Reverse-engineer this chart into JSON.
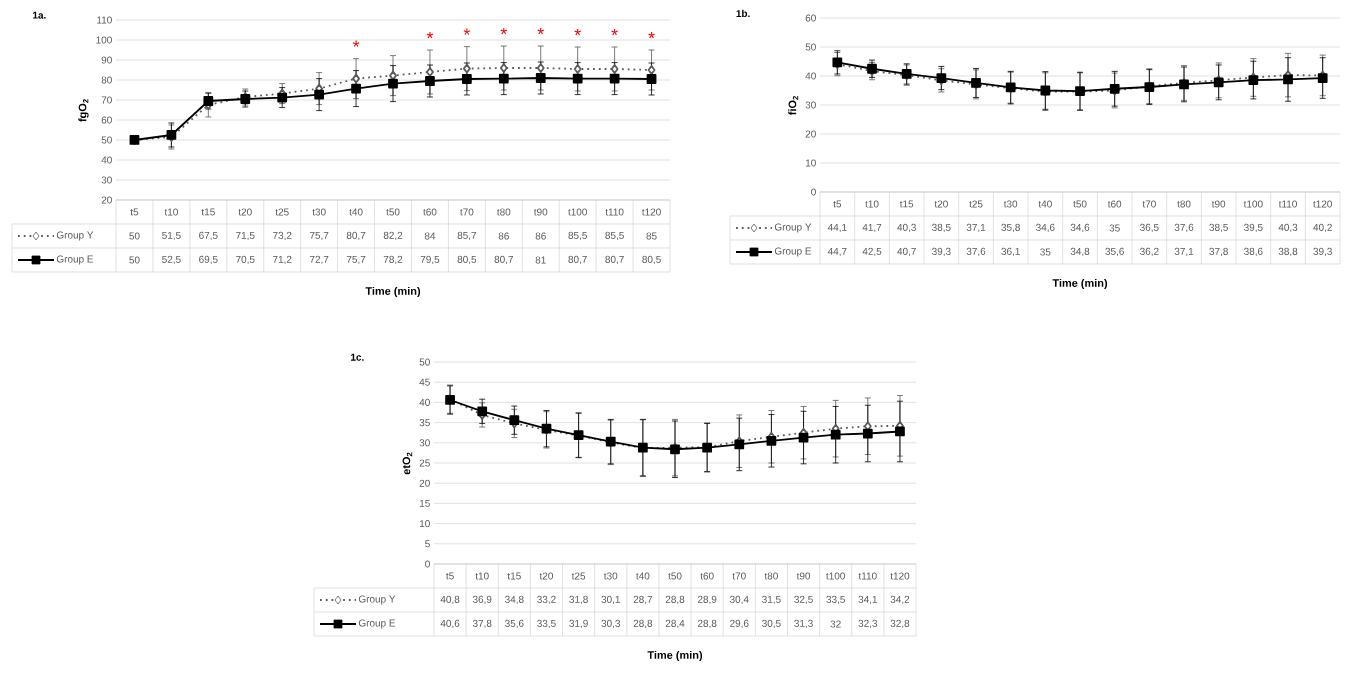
{
  "chart_data": [
    {
      "type": "line",
      "title": "1a.",
      "xlabel": "Time (min)",
      "ylabel": "fgO$_{2}$",
      "categories": [
        "t5",
        "t10",
        "t15",
        "t20",
        "t25",
        "t30",
        "t40",
        "t50",
        "t60",
        "t70",
        "t80",
        "t90",
        "t100",
        "t110",
        "t120"
      ],
      "ylim": [
        20,
        110
      ],
      "yticks": [
        20,
        30,
        40,
        50,
        60,
        70,
        80,
        90,
        100,
        110
      ],
      "grid": "y",
      "legend": "bottom",
      "series": [
        {
          "name": "Group Y",
          "color": "#595959",
          "marker": "diamond",
          "line_style": "dotted",
          "values": [
            50,
            51.5,
            67.5,
            71.5,
            73.2,
            75.7,
            80.7,
            82.2,
            84,
            85.7,
            86,
            86,
            85.5,
            85.5,
            85
          ],
          "errors": [
            1,
            6,
            6,
            4,
            5,
            8,
            10,
            10,
            11,
            11,
            11,
            11,
            11,
            11,
            10
          ],
          "value_labels": [
            "50",
            "51,5",
            "67,5",
            "71,5",
            "73,2",
            "75,7",
            "80,7",
            "82,2",
            "84",
            "85,7",
            "86",
            "86",
            "85,5",
            "85,5",
            "85"
          ]
        },
        {
          "name": "Group E",
          "color": "#000000",
          "marker": "square",
          "line_style": "solid",
          "values": [
            50,
            52.5,
            69.5,
            70.5,
            71.2,
            72.7,
            75.7,
            78.2,
            79.5,
            80.5,
            80.7,
            81,
            80.7,
            80.7,
            80.5
          ],
          "errors": [
            1,
            6,
            4,
            4,
            5,
            8,
            9,
            9,
            8,
            8,
            8,
            8,
            8,
            8,
            8
          ],
          "value_labels": [
            "50",
            "52,5",
            "69,5",
            "70,5",
            "71,2",
            "72,7",
            "75,7",
            "78,2",
            "79,5",
            "80,5",
            "80,7",
            "81",
            "80,7",
            "80,7",
            "80,5"
          ]
        }
      ],
      "annotations": [
        {
          "text": "*",
          "x": "t40",
          "y": 80.7
        },
        {
          "text": "*",
          "x": "t60",
          "y": 84
        },
        {
          "text": "*",
          "x": "t70",
          "y": 85.7
        },
        {
          "text": "*",
          "x": "t80",
          "y": 86
        },
        {
          "text": "*",
          "x": "t90",
          "y": 86
        },
        {
          "text": "*",
          "x": "t100",
          "y": 85.5
        },
        {
          "text": "*",
          "x": "t110",
          "y": 85.5
        },
        {
          "text": "*",
          "x": "t120",
          "y": 85
        }
      ]
    },
    {
      "type": "line",
      "title": "1b.",
      "xlabel": "Time (min)",
      "ylabel": "fiO$_{2}$",
      "categories": [
        "t5",
        "t10",
        "t15",
        "t20",
        "t25",
        "t30",
        "t40",
        "t50",
        "t60",
        "t70",
        "t80",
        "t90",
        "t100",
        "t110",
        "t120"
      ],
      "ylim": [
        0,
        60
      ],
      "yticks": [
        0,
        10,
        20,
        30,
        40,
        50,
        60
      ],
      "grid": "y",
      "legend": "bottom",
      "series": [
        {
          "name": "Group Y",
          "color": "#595959",
          "marker": "diamond",
          "line_style": "dotted",
          "values": [
            44.1,
            41.7,
            40.3,
            38.5,
            37.1,
            35.8,
            34.6,
            34.6,
            35,
            36.5,
            37.6,
            38.5,
            39.5,
            40.3,
            40.2
          ],
          "errors": [
            4,
            3,
            3.5,
            4,
            5,
            5.5,
            6.5,
            6.5,
            6,
            6,
            6,
            6,
            6.5,
            7.5,
            7
          ],
          "value_labels": [
            "44,1",
            "41,7",
            "40,3",
            "38,5",
            "37,1",
            "35,8",
            "34,6",
            "34,6",
            "35",
            "36,5",
            "37,6",
            "38,5",
            "39,5",
            "40,3",
            "40,2"
          ]
        },
        {
          "name": "Group E",
          "color": "#000000",
          "marker": "square",
          "line_style": "solid",
          "values": [
            44.7,
            42.5,
            40.7,
            39.3,
            37.6,
            36.1,
            35,
            34.8,
            35.6,
            36.2,
            37.1,
            37.8,
            38.6,
            38.8,
            39.3
          ],
          "errors": [
            4,
            3,
            3.5,
            4,
            5,
            5.5,
            6.5,
            6.5,
            6,
            6,
            6,
            6,
            6.5,
            7.5,
            7
          ],
          "value_labels": [
            "44,7",
            "42,5",
            "40,7",
            "39,3",
            "37,6",
            "36,1",
            "35",
            "34,8",
            "35,6",
            "36,2",
            "37,1",
            "37,8",
            "38,6",
            "38,8",
            "39,3"
          ]
        }
      ]
    },
    {
      "type": "line",
      "title": "1c.",
      "xlabel": "Time (min)",
      "ylabel": "etO$_{2}$",
      "categories": [
        "t5",
        "t10",
        "t15",
        "t20",
        "t25",
        "t30",
        "t40",
        "t50",
        "t60",
        "t70",
        "t80",
        "t90",
        "t100",
        "t110",
        "t120"
      ],
      "ylim": [
        0,
        50
      ],
      "yticks": [
        0,
        5,
        10,
        15,
        20,
        25,
        30,
        35,
        40,
        45,
        50
      ],
      "grid": "y",
      "legend": "bottom",
      "series": [
        {
          "name": "Group Y",
          "color": "#595959",
          "marker": "diamond",
          "line_style": "dotted",
          "values": [
            40.8,
            36.9,
            34.8,
            33.2,
            31.8,
            30.1,
            28.7,
            28.8,
            28.9,
            30.4,
            31.5,
            32.5,
            33.5,
            34.1,
            34.2
          ],
          "errors": [
            3.5,
            3,
            3.5,
            4.5,
            5.5,
            5.5,
            7,
            7,
            6,
            6.5,
            6.5,
            6.5,
            7,
            7,
            7.5
          ],
          "value_labels": [
            "40,8",
            "36,9",
            "34,8",
            "33,2",
            "31,8",
            "30,1",
            "28,7",
            "28,8",
            "28,9",
            "30,4",
            "31,5",
            "32,5",
            "33,5",
            "34,1",
            "34,2"
          ]
        },
        {
          "name": "Group E",
          "color": "#000000",
          "marker": "square",
          "line_style": "solid",
          "values": [
            40.6,
            37.8,
            35.6,
            33.5,
            31.9,
            30.3,
            28.8,
            28.4,
            28.8,
            29.6,
            30.5,
            31.3,
            32,
            32.3,
            32.8
          ],
          "errors": [
            3.5,
            3,
            3.5,
            4.5,
            5.5,
            5.5,
            7,
            7,
            6,
            6.5,
            6.5,
            6.5,
            7,
            7,
            7.5
          ],
          "value_labels": [
            "40,6",
            "37,8",
            "35,6",
            "33,5",
            "31,9",
            "30,3",
            "28,8",
            "28,4",
            "28,8",
            "29,6",
            "30,5",
            "31,3",
            "32",
            "32,3",
            "32,8"
          ]
        }
      ]
    }
  ]
}
